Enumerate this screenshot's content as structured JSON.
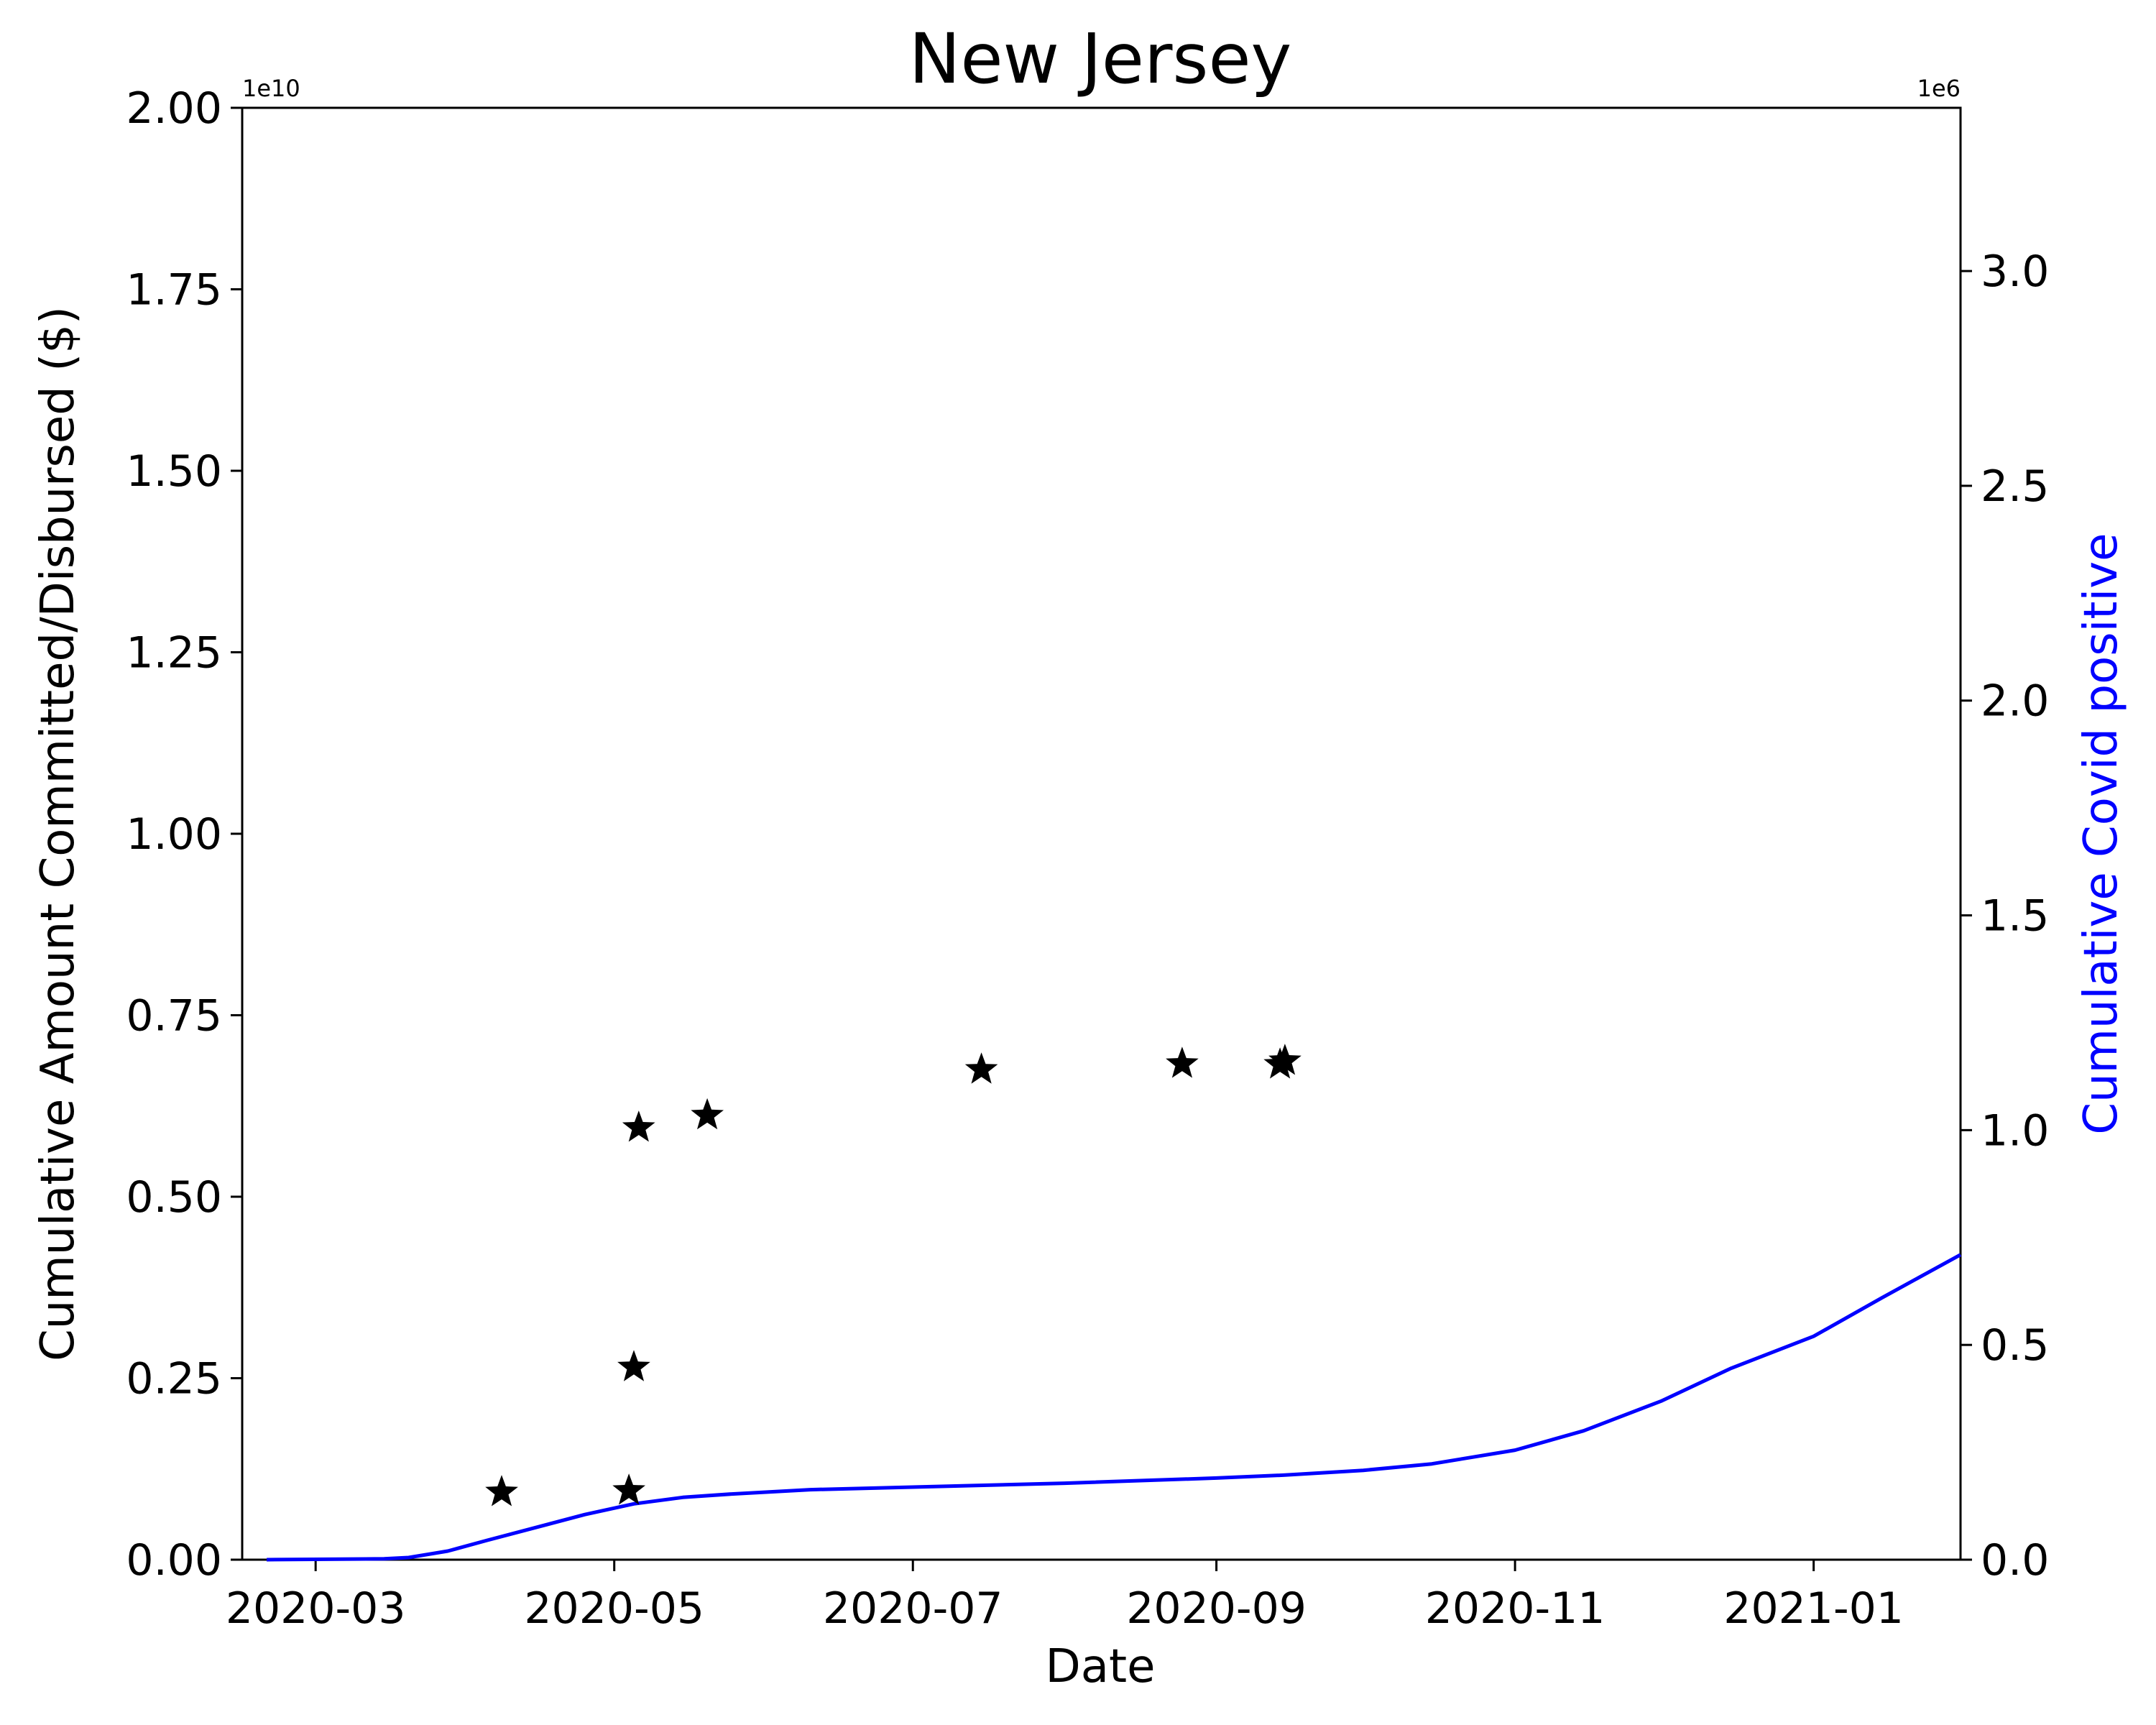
{
  "chart_data": {
    "type": "scatter+line",
    "title": "New Jersey",
    "xlabel": "Date",
    "ylabel_left": "Cumulative Amount Committed/Disbursed ($)",
    "ylabel_right": "Cumulative Covid positive",
    "left_axis_offset": "1e10",
    "right_axis_offset": "1e6",
    "left_multiplier": 10000000000,
    "right_multiplier": 1000000,
    "xlim": [
      "2020-02-15",
      "2021-01-31"
    ],
    "ylim_left": [
      0,
      2.0
    ],
    "ylim_right": [
      0,
      3.38
    ],
    "x_ticks": [
      {
        "date": "2020-03-01",
        "label": "2020-03"
      },
      {
        "date": "2020-05-01",
        "label": "2020-05"
      },
      {
        "date": "2020-07-01",
        "label": "2020-07"
      },
      {
        "date": "2020-09-01",
        "label": "2020-09"
      },
      {
        "date": "2020-11-01",
        "label": "2020-11"
      },
      {
        "date": "2021-01-01",
        "label": "2021-01"
      }
    ],
    "y_ticks_left": [
      "0.00",
      "0.25",
      "0.50",
      "0.75",
      "1.00",
      "1.25",
      "1.50",
      "1.75",
      "2.00"
    ],
    "y_ticks_right": [
      "0.0",
      "0.5",
      "1.0",
      "1.5",
      "2.0",
      "2.5",
      "3.0"
    ],
    "colors": {
      "funding": "#000000",
      "covid": "#0000ff",
      "axis": "#000000"
    },
    "series": [
      {
        "kind": "scatter",
        "axis": "left",
        "marker": "star",
        "points": [
          {
            "date": "2020-04-08",
            "value": 0.093
          },
          {
            "date": "2020-05-04",
            "value": 0.095
          },
          {
            "date": "2020-05-05",
            "value": 0.265
          },
          {
            "date": "2020-05-06",
            "value": 0.595
          },
          {
            "date": "2020-05-20",
            "value": 0.612
          },
          {
            "date": "2020-07-15",
            "value": 0.675
          },
          {
            "date": "2020-08-25",
            "value": 0.683
          },
          {
            "date": "2020-09-14",
            "value": 0.682
          },
          {
            "date": "2020-09-15",
            "value": 0.687
          }
        ]
      },
      {
        "kind": "line",
        "axis": "right",
        "points": [
          {
            "date": "2020-02-20",
            "value": 0.0
          },
          {
            "date": "2020-03-15",
            "value": 0.002
          },
          {
            "date": "2020-03-20",
            "value": 0.005
          },
          {
            "date": "2020-03-28",
            "value": 0.02
          },
          {
            "date": "2020-04-05",
            "value": 0.045
          },
          {
            "date": "2020-04-15",
            "value": 0.075
          },
          {
            "date": "2020-04-25",
            "value": 0.105
          },
          {
            "date": "2020-05-05",
            "value": 0.13
          },
          {
            "date": "2020-05-15",
            "value": 0.145
          },
          {
            "date": "2020-05-25",
            "value": 0.153
          },
          {
            "date": "2020-06-10",
            "value": 0.163
          },
          {
            "date": "2020-07-01",
            "value": 0.169
          },
          {
            "date": "2020-08-01",
            "value": 0.178
          },
          {
            "date": "2020-09-01",
            "value": 0.19
          },
          {
            "date": "2020-09-15",
            "value": 0.197
          },
          {
            "date": "2020-10-01",
            "value": 0.208
          },
          {
            "date": "2020-10-15",
            "value": 0.223
          },
          {
            "date": "2020-11-01",
            "value": 0.255
          },
          {
            "date": "2020-11-15",
            "value": 0.3
          },
          {
            "date": "2020-12-01",
            "value": 0.37
          },
          {
            "date": "2020-12-15",
            "value": 0.445
          },
          {
            "date": "2021-01-01",
            "value": 0.52
          },
          {
            "date": "2021-01-15",
            "value": 0.61
          },
          {
            "date": "2021-01-31",
            "value": 0.71
          }
        ]
      }
    ]
  }
}
